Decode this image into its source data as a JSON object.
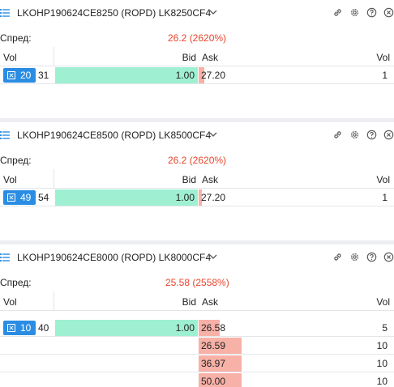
{
  "widgets": [
    {
      "title": "LKOHP190624CE8250 (ROPD) LK8250CF4",
      "spread_label": "Спред:",
      "spread_value": "26.2 (2620%)",
      "columns": {
        "vol_left": "Vol",
        "bid": "Bid",
        "ask": "Ask",
        "vol_right": "Vol"
      },
      "rows": [
        {
          "badge": "20",
          "bid_vol": "31",
          "bid": "1.00",
          "ask": "27.20",
          "ask_vol": "1"
        }
      ]
    },
    {
      "title": "LKOHP190624CE8500 (ROPD) LK8500CF4",
      "spread_label": "Спред:",
      "spread_value": "26.2 (2620%)",
      "columns": {
        "vol_left": "Vol",
        "bid": "Bid",
        "ask": "Ask",
        "vol_right": "Vol"
      },
      "rows": [
        {
          "badge": "49",
          "bid_vol": "54",
          "bid": "1.00",
          "ask": "27.20",
          "ask_vol": "1"
        }
      ]
    },
    {
      "title": "LKOHP190624CE8000 (ROPD) LK8000CF4",
      "spread_label": "Спред:",
      "spread_value": "25.58 (2558%)",
      "columns": {
        "vol_left": "Vol",
        "bid": "Bid",
        "ask": "Ask",
        "vol_right": "Vol"
      },
      "rows": [
        {
          "badge": "10",
          "bid_vol": "40",
          "bid": "1.00",
          "ask": "26.58",
          "ask_vol": "5"
        },
        {
          "badge": "",
          "bid_vol": "",
          "bid": "",
          "ask": "26.59",
          "ask_vol": "10"
        },
        {
          "badge": "",
          "bid_vol": "",
          "bid": "",
          "ask": "36.97",
          "ask_vol": "10"
        },
        {
          "badge": "",
          "bid_vol": "",
          "bid": "",
          "ask": "50.00",
          "ask_vol": "10"
        }
      ]
    }
  ],
  "icons": {
    "menu": "list-icon",
    "title_dropdown": "chevron-down-icon",
    "link": "link-icon",
    "settings": "gear-icon",
    "help": "help-icon",
    "close": "close-icon",
    "order": "close-order-icon"
  },
  "colors": {
    "accent": "#2a8de3",
    "spread": "#e8452c",
    "bid_fill": "#9ff0d2",
    "ask_fill": "#f8b1a7",
    "separator": "#eceef2"
  },
  "levels": {
    "widget0": {
      "bid_fill": [
        1.0
      ],
      "ask_fill": [
        0.1
      ]
    },
    "widget1": {
      "bid_fill": [
        1.0
      ],
      "ask_fill": [
        0.07
      ]
    },
    "widget2": {
      "bid_fill": [
        1.0
      ],
      "ask_fill": [
        0.49,
        0.98,
        0.98,
        0.98
      ]
    }
  }
}
